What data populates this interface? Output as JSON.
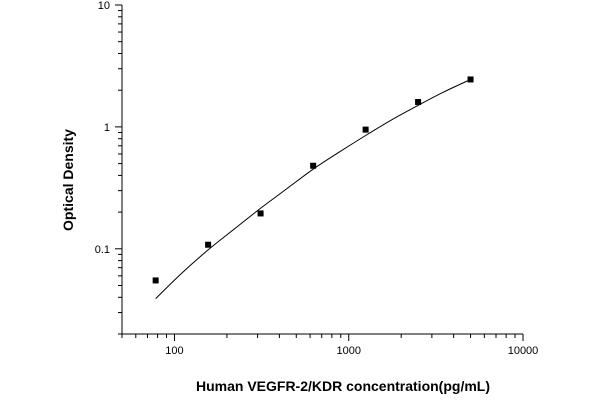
{
  "chart_data": {
    "type": "scatter",
    "title": "",
    "xlabel": "Human VEGFR-2/KDR concentration(pg/mL)",
    "ylabel": "Optical Density",
    "x_scale": "log",
    "y_scale": "log",
    "xlim": [
      50,
      10000
    ],
    "ylim": [
      0.02,
      10
    ],
    "x_ticks": [
      {
        "value": 100,
        "label": "100"
      },
      {
        "value": 1000,
        "label": "1000"
      },
      {
        "value": 10000,
        "label": "10000"
      }
    ],
    "y_ticks": [
      {
        "value": 0.1,
        "label": "0.1"
      },
      {
        "value": 1,
        "label": "1"
      },
      {
        "value": 10,
        "label": "10"
      }
    ],
    "grid": false,
    "legend": "none",
    "series": [
      {
        "marker": "square",
        "color": "#000000",
        "x": [
          78,
          156,
          312,
          625,
          1250,
          2500,
          5000
        ],
        "y": [
          0.055,
          0.108,
          0.195,
          0.48,
          0.95,
          1.6,
          2.45
        ]
      }
    ],
    "fit_curve": {
      "color": "#000000",
      "x": [
        78,
        110,
        156,
        220,
        312,
        440,
        625,
        880,
        1250,
        1760,
        2500,
        3500,
        5000
      ],
      "y": [
        0.039,
        0.063,
        0.098,
        0.145,
        0.215,
        0.31,
        0.45,
        0.62,
        0.85,
        1.14,
        1.5,
        1.93,
        2.45
      ]
    }
  }
}
